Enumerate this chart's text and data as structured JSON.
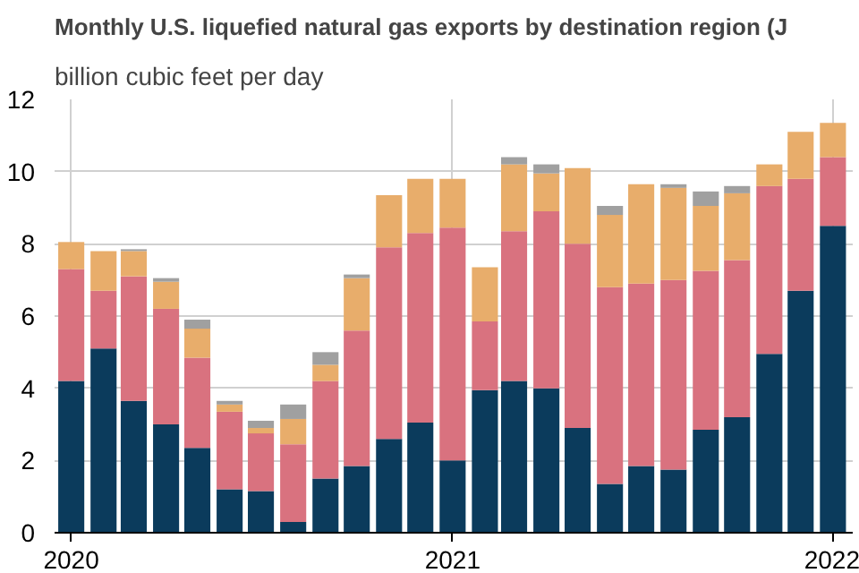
{
  "chart_data": {
    "type": "bar",
    "stacked": true,
    "title": "Monthly U.S. liquefied natural gas exports by destination region (J",
    "subtitle": "billion cubic feet per day",
    "x": [
      "2020-01",
      "2020-02",
      "2020-03",
      "2020-04",
      "2020-05",
      "2020-06",
      "2020-07",
      "2020-08",
      "2020-09",
      "2020-10",
      "2020-11",
      "2020-12",
      "2021-01",
      "2021-02",
      "2021-03",
      "2021-04",
      "2021-05",
      "2021-06",
      "2021-07",
      "2021-08",
      "2021-09",
      "2021-10",
      "2021-11",
      "2021-12",
      "2022-01"
    ],
    "series": [
      {
        "color": "#0b3b5c",
        "values": [
          4.2,
          5.1,
          3.65,
          3.0,
          2.35,
          1.2,
          1.15,
          0.3,
          1.5,
          1.85,
          2.6,
          3.05,
          2.0,
          3.95,
          4.2,
          4.0,
          2.9,
          1.35,
          1.85,
          1.75,
          2.85,
          3.2,
          4.95,
          6.7,
          8.5
        ]
      },
      {
        "color": "#d9727f",
        "values": [
          3.1,
          1.6,
          3.45,
          3.2,
          2.5,
          2.15,
          1.6,
          2.15,
          2.7,
          3.75,
          5.3,
          5.25,
          6.45,
          1.9,
          4.15,
          4.9,
          5.1,
          5.45,
          5.05,
          5.25,
          4.4,
          4.35,
          4.65,
          3.1,
          1.9
        ]
      },
      {
        "color": "#e8ad6b",
        "values": [
          0.75,
          1.1,
          0.7,
          0.75,
          0.8,
          0.2,
          0.15,
          0.7,
          0.45,
          1.45,
          1.45,
          1.5,
          1.35,
          1.5,
          1.85,
          1.05,
          2.1,
          2.0,
          2.75,
          2.55,
          1.8,
          1.85,
          0.6,
          1.3,
          0.95
        ]
      },
      {
        "color": "#a0a0a0",
        "values": [
          0,
          0,
          0.05,
          0.1,
          0.25,
          0.1,
          0.2,
          0.4,
          0.35,
          0.1,
          0,
          0,
          0,
          0,
          0.2,
          0.25,
          0,
          0.25,
          0,
          0.1,
          0.4,
          0.2,
          0,
          0,
          0
        ]
      }
    ],
    "xlim": [
      "2019-12-16",
      "2022-01-20"
    ],
    "xticks": [
      {
        "value": "2020-01",
        "label": "2020"
      },
      {
        "value": "2021-01",
        "label": "2021"
      },
      {
        "value": "2022-01",
        "label": "2022"
      }
    ],
    "ylim": [
      0,
      12
    ],
    "yticks": [
      0,
      2,
      4,
      6,
      8,
      10,
      12
    ],
    "grid": true
  }
}
